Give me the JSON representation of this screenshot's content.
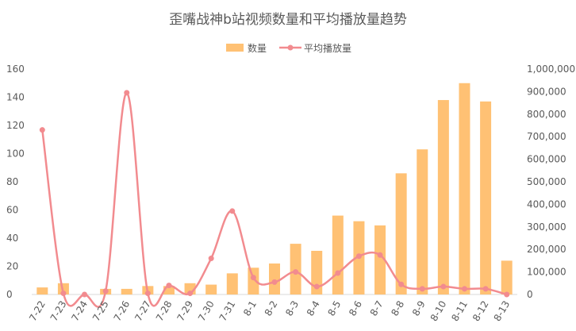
{
  "chart_data": {
    "type": "bar",
    "title": "歪嘴战神b站视频数量和平均播放量趋势",
    "categories": [
      "7-22",
      "7-23",
      "7-24",
      "7-25",
      "7-26",
      "7-27",
      "7-28",
      "7-29",
      "7-30",
      "7-31",
      "8-1",
      "8-2",
      "8-3",
      "8-4",
      "8-5",
      "8-6",
      "8-7",
      "8-8",
      "8-9",
      "8-10",
      "8-11",
      "8-12",
      "8-13"
    ],
    "series": [
      {
        "name": "数量",
        "type": "bar",
        "axis": "left",
        "color": "#FFC174",
        "values": [
          5,
          8,
          0,
          4,
          4,
          6,
          6,
          8,
          7,
          15,
          19,
          22,
          36,
          31,
          56,
          52,
          49,
          86,
          103,
          138,
          150,
          137,
          24
        ]
      },
      {
        "name": "平均播放量",
        "type": "line",
        "smooth": true,
        "axis": "right",
        "color": "#F28B8F",
        "values": [
          730000,
          5000,
          0,
          15000,
          895000,
          5000,
          40000,
          5000,
          160000,
          370000,
          75000,
          55000,
          100000,
          35000,
          95000,
          170000,
          175000,
          45000,
          25000,
          35000,
          25000,
          25000,
          0
        ]
      }
    ],
    "ylim": [
      0,
      160
    ],
    "yticks": [
      0,
      20,
      40,
      60,
      80,
      100,
      120,
      140,
      160
    ],
    "y2lim": [
      0,
      1000000
    ],
    "y2ticks": [
      "0",
      "100,000",
      "200,000",
      "300,000",
      "400,000",
      "500,000",
      "600,000",
      "700,000",
      "800,000",
      "900,000",
      "1,000,000"
    ],
    "legend_position": "top-center",
    "grid": false
  }
}
